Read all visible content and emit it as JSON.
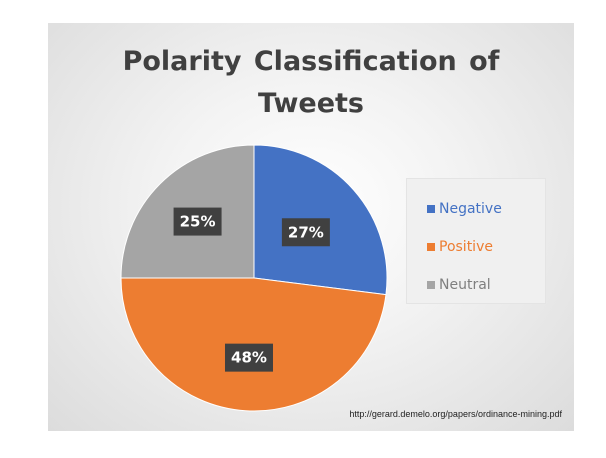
{
  "chart_data": {
    "type": "pie",
    "title_line1": "Polarity Classification of",
    "title_line2": "Tweets",
    "categories": [
      "Negative",
      "Positive",
      "Neutral"
    ],
    "values": [
      27,
      48,
      25
    ],
    "labels": [
      "27%",
      "48%",
      "25%"
    ],
    "colors": [
      "#4472c4",
      "#ed7d31",
      "#a5a5a5"
    ],
    "legend_position": "right"
  },
  "source_note": "http://gerard.demelo.org/papers/ordinance-mining.pdf"
}
